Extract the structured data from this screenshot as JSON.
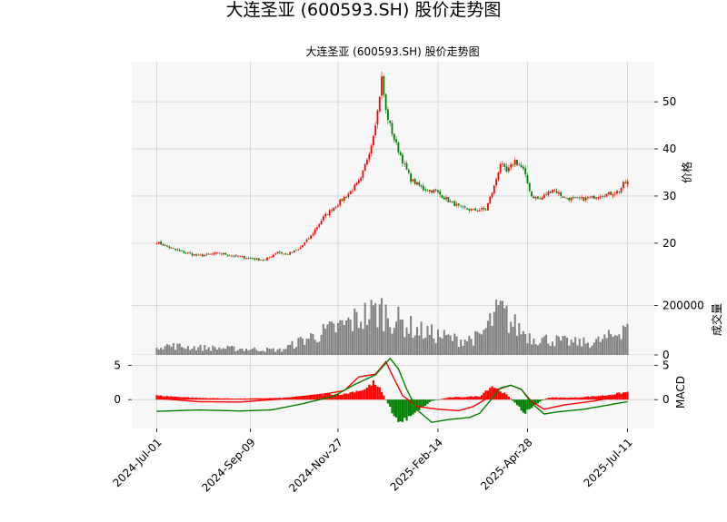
{
  "chart_data": {
    "type": "candlestick",
    "title": "大连圣亚 (600593.SH) 股价走势图",
    "subtitle": "大连圣亚 (600593.SH) 股价走势图",
    "x_tick_labels": [
      "2024-Jul-01",
      "2024-Sep-09",
      "2024-Nov-27",
      "2025-Feb-14",
      "2025-Apr-28",
      "2025-Jul-11"
    ],
    "price_panel": {
      "ylabel": "价格",
      "yticks": [
        20,
        30,
        40,
        50
      ],
      "ylim": [
        11.5,
        58.5
      ],
      "grid": true,
      "close_anchors": [
        [
          0,
          20.2
        ],
        [
          10,
          18.4
        ],
        [
          20,
          17.3
        ],
        [
          30,
          17.9
        ],
        [
          38,
          17.2
        ],
        [
          45,
          16.8
        ],
        [
          52,
          16.4
        ],
        [
          58,
          18.2
        ],
        [
          62,
          17.6
        ],
        [
          68,
          18.6
        ],
        [
          74,
          21.5
        ],
        [
          80,
          25.5
        ],
        [
          86,
          28.0
        ],
        [
          92,
          30.5
        ],
        [
          98,
          33.5
        ],
        [
          103,
          41.0
        ],
        [
          106,
          48.0
        ],
        [
          108,
          55.0
        ],
        [
          110,
          48.0
        ],
        [
          114,
          42.0
        ],
        [
          118,
          37.5
        ],
        [
          122,
          33.5
        ],
        [
          128,
          31.5
        ],
        [
          134,
          31.0
        ],
        [
          140,
          29.0
        ],
        [
          146,
          27.5
        ],
        [
          152,
          27.0
        ],
        [
          158,
          27.2
        ],
        [
          162,
          32.0
        ],
        [
          165,
          37.0
        ],
        [
          168,
          35.0
        ],
        [
          172,
          37.5
        ],
        [
          176,
          35.5
        ],
        [
          180,
          30.0
        ],
        [
          184,
          29.3
        ],
        [
          190,
          31.5
        ],
        [
          196,
          29.6
        ],
        [
          202,
          29.3
        ],
        [
          208,
          29.5
        ],
        [
          212,
          30.2
        ],
        [
          218,
          30.5
        ],
        [
          222,
          31.0
        ],
        [
          224,
          32.5
        ],
        [
          226,
          33.0
        ]
      ]
    },
    "volume_panel": {
      "ylabel": "成交量",
      "yticks": [
        0,
        200000
      ],
      "ylim": [
        0,
        290000
      ],
      "anchors": [
        [
          0,
          40000
        ],
        [
          20,
          30000
        ],
        [
          40,
          25000
        ],
        [
          60,
          20000
        ],
        [
          70,
          60000
        ],
        [
          80,
          90000
        ],
        [
          90,
          120000
        ],
        [
          100,
          160000
        ],
        [
          108,
          180000
        ],
        [
          115,
          140000
        ],
        [
          125,
          100000
        ],
        [
          135,
          80000
        ],
        [
          145,
          60000
        ],
        [
          155,
          70000
        ],
        [
          160,
          130000
        ],
        [
          165,
          180000
        ],
        [
          170,
          130000
        ],
        [
          180,
          70000
        ],
        [
          190,
          60000
        ],
        [
          200,
          50000
        ],
        [
          210,
          50000
        ],
        [
          220,
          80000
        ],
        [
          226,
          140000
        ]
      ]
    },
    "macd_panel": {
      "ylabel": "MACD",
      "yticks_left": [
        0,
        5
      ],
      "yticks_right": [
        0,
        5
      ],
      "ylim": [
        -4.2,
        6.5
      ],
      "series": [
        {
          "name": "",
          "color": "#ff0000",
          "kind": "line",
          "anchors": [
            [
              0,
              0.2
            ],
            [
              20,
              -0.3
            ],
            [
              40,
              -0.35
            ],
            [
              60,
              0.1
            ],
            [
              80,
              0.8
            ],
            [
              90,
              1.3
            ],
            [
              97,
              3.3
            ],
            [
              105,
              3.7
            ],
            [
              110,
              5.5
            ],
            [
              114,
              3.0
            ],
            [
              118,
              0.6
            ],
            [
              125,
              -1.0
            ],
            [
              135,
              -1.4
            ],
            [
              145,
              -1.6
            ],
            [
              152,
              -1.0
            ],
            [
              158,
              0.1
            ],
            [
              162,
              1.3
            ],
            [
              170,
              2.1
            ],
            [
              175,
              1.5
            ],
            [
              180,
              -0.3
            ],
            [
              186,
              -1.4
            ],
            [
              195,
              -0.8
            ],
            [
              210,
              -0.2
            ],
            [
              226,
              0.7
            ]
          ]
        },
        {
          "name": "",
          "color": "#008000",
          "kind": "line",
          "anchors": [
            [
              0,
              -1.7
            ],
            [
              20,
              -1.5
            ],
            [
              40,
              -1.65
            ],
            [
              55,
              -1.5
            ],
            [
              70,
              -0.6
            ],
            [
              85,
              0.5
            ],
            [
              95,
              2.2
            ],
            [
              105,
              3.6
            ],
            [
              112,
              6.0
            ],
            [
              116,
              4.5
            ],
            [
              120,
              1.5
            ],
            [
              125,
              -1.5
            ],
            [
              132,
              -3.3
            ],
            [
              140,
              -2.9
            ],
            [
              150,
              -2.6
            ],
            [
              155,
              -2.0
            ],
            [
              160,
              -0.2
            ],
            [
              165,
              1.7
            ],
            [
              170,
              2.1
            ],
            [
              175,
              1.5
            ],
            [
              180,
              -0.5
            ],
            [
              186,
              -2.1
            ],
            [
              192,
              -1.8
            ],
            [
              205,
              -1.4
            ],
            [
              226,
              -0.3
            ]
          ]
        },
        {
          "name": "",
          "kind": "histogram",
          "pos_color": "#ff0000",
          "neg_color": "#008000",
          "anchors": [
            [
              0,
              0.6
            ],
            [
              5,
              0.5
            ],
            [
              20,
              0.25
            ],
            [
              40,
              0.15
            ],
            [
              60,
              0.25
            ],
            [
              75,
              0.6
            ],
            [
              82,
              0.8
            ],
            [
              90,
              0.8
            ],
            [
              95,
              1.2
            ],
            [
              100,
              1.5
            ],
            [
              104,
              2.5
            ],
            [
              107,
              1.6
            ],
            [
              111,
              -0.5
            ],
            [
              114,
              -2.5
            ],
            [
              116,
              -3.2
            ],
            [
              119,
              -3.0
            ],
            [
              122,
              -2.2
            ],
            [
              127,
              -1.2
            ],
            [
              132,
              -0.2
            ],
            [
              140,
              0.3
            ],
            [
              155,
              0.5
            ],
            [
              158,
              1.3
            ],
            [
              161,
              2.0
            ],
            [
              164,
              1.5
            ],
            [
              168,
              0.7
            ],
            [
              172,
              -0.5
            ],
            [
              175,
              -1.5
            ],
            [
              177,
              -1.8
            ],
            [
              180,
              -1.2
            ],
            [
              184,
              -0.3
            ],
            [
              188,
              0.3
            ],
            [
              200,
              0.3
            ],
            [
              215,
              0.6
            ],
            [
              226,
              1.1
            ]
          ]
        }
      ]
    }
  }
}
